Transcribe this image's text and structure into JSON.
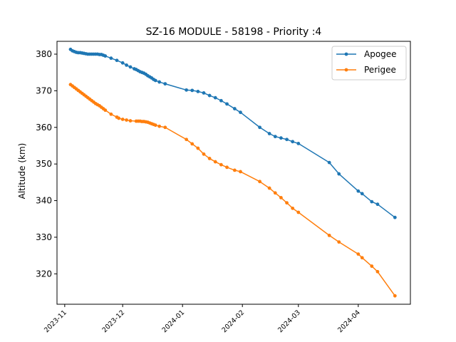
{
  "chart_data": {
    "type": "line",
    "title": "SZ-16 MODULE - 58198 - Priority :4",
    "xlabel": "",
    "ylabel": "Altitude (km)",
    "x_axis_type": "date",
    "xlim": [
      "2023-10-28",
      "2024-04-28"
    ],
    "ylim": [
      311.7,
      383.5
    ],
    "x_ticks": [
      "2023-11",
      "2023-12",
      "2024-01",
      "2024-02",
      "2024-03",
      "2024-04"
    ],
    "x_tick_dates": [
      "2023-11-01",
      "2023-12-01",
      "2024-01-01",
      "2024-02-01",
      "2024-03-01",
      "2024-04-01"
    ],
    "y_ticks": [
      320,
      330,
      340,
      350,
      360,
      370,
      380
    ],
    "grid": false,
    "legend_position": "top-right",
    "series": [
      {
        "name": "Apogee",
        "color": "#1f77b4",
        "points": [
          [
            "2023-11-04",
            381.3
          ],
          [
            "2023-11-05",
            380.9
          ],
          [
            "2023-11-06",
            380.7
          ],
          [
            "2023-11-07",
            380.5
          ],
          [
            "2023-11-08",
            380.4
          ],
          [
            "2023-11-09",
            380.4
          ],
          [
            "2023-11-10",
            380.3
          ],
          [
            "2023-11-11",
            380.2
          ],
          [
            "2023-11-12",
            380.1
          ],
          [
            "2023-11-13",
            380.0
          ],
          [
            "2023-11-14",
            380.0
          ],
          [
            "2023-11-15",
            380.0
          ],
          [
            "2023-11-16",
            380.0
          ],
          [
            "2023-11-17",
            380.0
          ],
          [
            "2023-11-18",
            380.0
          ],
          [
            "2023-11-19",
            379.9
          ],
          [
            "2023-11-20",
            379.9
          ],
          [
            "2023-11-21",
            379.7
          ],
          [
            "2023-11-22",
            379.5
          ],
          [
            "2023-11-25",
            378.9
          ],
          [
            "2023-11-28",
            378.3
          ],
          [
            "2023-12-01",
            377.6
          ],
          [
            "2023-12-03",
            377.0
          ],
          [
            "2023-12-05",
            376.5
          ],
          [
            "2023-12-07",
            376.0
          ],
          [
            "2023-12-08",
            375.8
          ],
          [
            "2023-12-09",
            375.5
          ],
          [
            "2023-12-10",
            375.2
          ],
          [
            "2023-12-11",
            375.0
          ],
          [
            "2023-12-12",
            374.8
          ],
          [
            "2023-12-13",
            374.5
          ],
          [
            "2023-12-14",
            374.1
          ],
          [
            "2023-12-15",
            373.8
          ],
          [
            "2023-12-16",
            373.5
          ],
          [
            "2023-12-17",
            373.1
          ],
          [
            "2023-12-18",
            372.8
          ],
          [
            "2023-12-20",
            372.4
          ],
          [
            "2023-12-23",
            371.9
          ],
          [
            "2024-01-03",
            370.2
          ],
          [
            "2024-01-06",
            370.1
          ],
          [
            "2024-01-09",
            369.8
          ],
          [
            "2024-01-12",
            369.4
          ],
          [
            "2024-01-15",
            368.7
          ],
          [
            "2024-01-18",
            368.1
          ],
          [
            "2024-01-21",
            367.3
          ],
          [
            "2024-01-24",
            366.4
          ],
          [
            "2024-01-28",
            365.1
          ],
          [
            "2024-01-31",
            364.1
          ],
          [
            "2024-02-10",
            360.0
          ],
          [
            "2024-02-15",
            358.3
          ],
          [
            "2024-02-18",
            357.5
          ],
          [
            "2024-02-21",
            357.1
          ],
          [
            "2024-02-24",
            356.7
          ],
          [
            "2024-02-27",
            356.1
          ],
          [
            "2024-03-01",
            355.6
          ],
          [
            "2024-03-17",
            350.4
          ],
          [
            "2024-03-22",
            347.3
          ],
          [
            "2024-04-01",
            342.6
          ],
          [
            "2024-04-03",
            341.9
          ],
          [
            "2024-04-08",
            339.7
          ],
          [
            "2024-04-11",
            339.0
          ],
          [
            "2024-04-20",
            335.4
          ]
        ]
      },
      {
        "name": "Perigee",
        "color": "#ff7f0e",
        "points": [
          [
            "2023-11-04",
            371.7
          ],
          [
            "2023-11-05",
            371.3
          ],
          [
            "2023-11-06",
            370.9
          ],
          [
            "2023-11-07",
            370.5
          ],
          [
            "2023-11-08",
            370.1
          ],
          [
            "2023-11-09",
            369.7
          ],
          [
            "2023-11-10",
            369.3
          ],
          [
            "2023-11-11",
            368.9
          ],
          [
            "2023-11-12",
            368.5
          ],
          [
            "2023-11-13",
            368.1
          ],
          [
            "2023-11-14",
            367.7
          ],
          [
            "2023-11-15",
            367.3
          ],
          [
            "2023-11-16",
            366.9
          ],
          [
            "2023-11-17",
            366.5
          ],
          [
            "2023-11-18",
            366.2
          ],
          [
            "2023-11-19",
            365.9
          ],
          [
            "2023-11-20",
            365.5
          ],
          [
            "2023-11-21",
            365.1
          ],
          [
            "2023-11-22",
            364.7
          ],
          [
            "2023-11-25",
            363.6
          ],
          [
            "2023-11-28",
            362.8
          ],
          [
            "2023-11-29",
            362.5
          ],
          [
            "2023-12-01",
            362.2
          ],
          [
            "2023-12-03",
            362.0
          ],
          [
            "2023-12-05",
            361.8
          ],
          [
            "2023-12-08",
            361.7
          ],
          [
            "2023-12-09",
            361.7
          ],
          [
            "2023-12-10",
            361.7
          ],
          [
            "2023-12-11",
            361.6
          ],
          [
            "2023-12-12",
            361.6
          ],
          [
            "2023-12-13",
            361.5
          ],
          [
            "2023-12-14",
            361.4
          ],
          [
            "2023-12-15",
            361.2
          ],
          [
            "2023-12-16",
            361.0
          ],
          [
            "2023-12-17",
            360.8
          ],
          [
            "2023-12-18",
            360.6
          ],
          [
            "2023-12-20",
            360.3
          ],
          [
            "2023-12-23",
            360.0
          ],
          [
            "2024-01-03",
            356.7
          ],
          [
            "2024-01-06",
            355.5
          ],
          [
            "2024-01-09",
            354.3
          ],
          [
            "2024-01-12",
            352.7
          ],
          [
            "2024-01-15",
            351.5
          ],
          [
            "2024-01-18",
            350.6
          ],
          [
            "2024-01-21",
            349.8
          ],
          [
            "2024-01-24",
            349.1
          ],
          [
            "2024-01-28",
            348.3
          ],
          [
            "2024-01-31",
            347.9
          ],
          [
            "2024-02-10",
            345.2
          ],
          [
            "2024-02-15",
            343.4
          ],
          [
            "2024-02-18",
            342.1
          ],
          [
            "2024-02-21",
            340.8
          ],
          [
            "2024-02-24",
            339.4
          ],
          [
            "2024-02-27",
            337.9
          ],
          [
            "2024-03-01",
            336.8
          ],
          [
            "2024-03-17",
            330.5
          ],
          [
            "2024-03-22",
            328.7
          ],
          [
            "2024-04-01",
            325.4
          ],
          [
            "2024-04-03",
            324.4
          ],
          [
            "2024-04-08",
            322.1
          ],
          [
            "2024-04-11",
            320.6
          ],
          [
            "2024-04-20",
            314.0
          ]
        ]
      }
    ]
  }
}
